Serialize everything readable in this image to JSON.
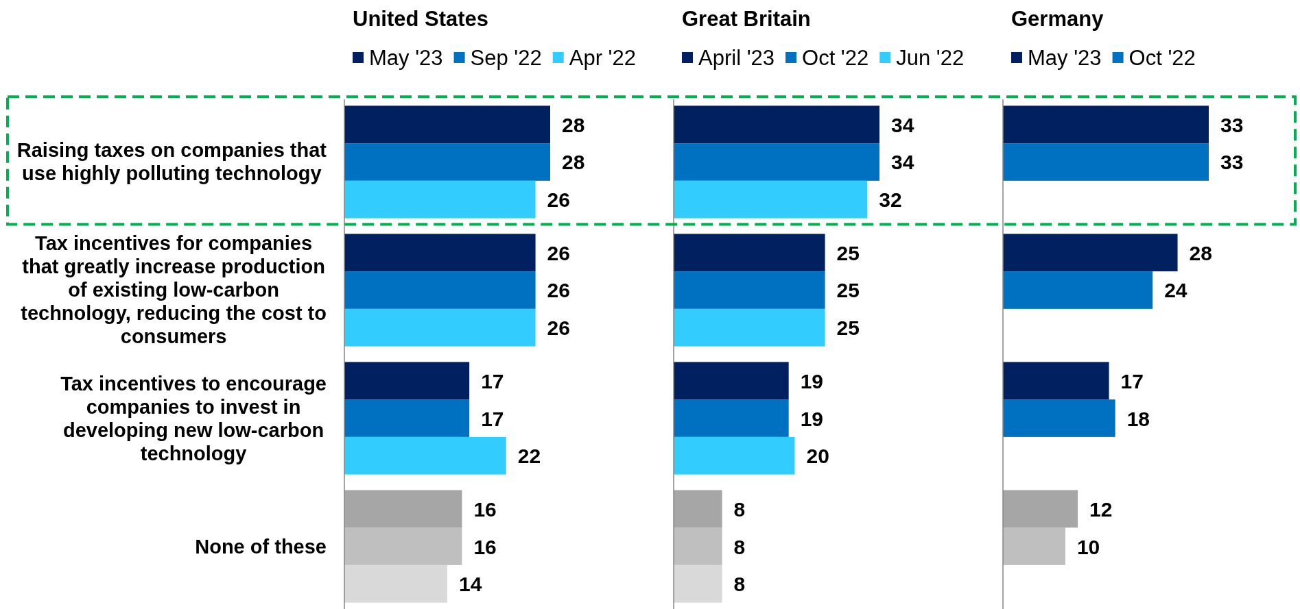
{
  "chart_data": [
    {
      "type": "bar",
      "orientation": "horizontal",
      "title": "United States",
      "legend": "top",
      "data_labels": true,
      "tick_labels": "y",
      "categories": [
        "Raising taxes on companies that use highly polluting technology",
        "Tax incentives for companies that greatly increase production of existing low-carbon technology, reducing the cost to consumers",
        "Tax incentives to encourage companies to invest in developing new low-carbon technology",
        "None of these"
      ],
      "series": [
        {
          "name": "May '23",
          "color": "#002060",
          "colors": [
            "#002060",
            "#002060",
            "#002060",
            "#a6a6a6"
          ],
          "values": [
            28,
            26,
            17,
            16
          ]
        },
        {
          "name": "Sep '22",
          "color": "#0070c0",
          "colors": [
            "#0070c0",
            "#0070c0",
            "#0070c0",
            "#bfbfbf"
          ],
          "values": [
            28,
            26,
            17,
            16
          ]
        },
        {
          "name": "Apr '22",
          "color": "#33ccff",
          "colors": [
            "#33ccff",
            "#33ccff",
            "#33ccff",
            "#d9d9d9"
          ],
          "values": [
            26,
            26,
            22,
            14
          ]
        }
      ]
    },
    {
      "type": "bar",
      "orientation": "horizontal",
      "title": "Great Britain",
      "legend": "top",
      "data_labels": true,
      "categories": [
        null,
        null,
        null,
        null
      ],
      "series": [
        {
          "name": "April '23",
          "color": "#002060",
          "colors": [
            "#002060",
            "#002060",
            "#002060",
            "#a6a6a6"
          ],
          "values": [
            34,
            25,
            19,
            8
          ]
        },
        {
          "name": "Oct '22",
          "color": "#0070c0",
          "colors": [
            "#0070c0",
            "#0070c0",
            "#0070c0",
            "#bfbfbf"
          ],
          "values": [
            34,
            25,
            19,
            8
          ]
        },
        {
          "name": "Jun '22",
          "color": "#33ccff",
          "colors": [
            "#33ccff",
            "#33ccff",
            "#33ccff",
            "#d9d9d9"
          ],
          "values": [
            32,
            25,
            20,
            8
          ]
        }
      ]
    },
    {
      "type": "bar",
      "orientation": "horizontal",
      "title": "Germany",
      "legend": "top",
      "data_labels": true,
      "categories": [
        null,
        null,
        null,
        null
      ],
      "series": [
        {
          "name": "May '23",
          "color": "#002060",
          "colors": [
            "#002060",
            "#002060",
            "#002060",
            "#a6a6a6"
          ],
          "values": [
            33,
            28,
            17,
            12
          ]
        },
        {
          "name": "Oct '22",
          "color": "#0070c0",
          "colors": [
            "#0070c0",
            "#0070c0",
            "#0070c0",
            "#bfbfbf"
          ],
          "values": [
            33,
            24,
            18,
            10
          ]
        }
      ]
    }
  ]
}
